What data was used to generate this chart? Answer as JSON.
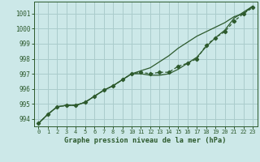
{
  "title": "Graphe pression niveau de la mer (hPa)",
  "bg_color": "#cce8e8",
  "grid_color": "#aacccc",
  "line_color": "#2d5a2d",
  "xlim": [
    -0.5,
    23.5
  ],
  "ylim": [
    993.5,
    1001.8
  ],
  "yticks": [
    994,
    995,
    996,
    997,
    998,
    999,
    1000,
    1001
  ],
  "xticks": [
    0,
    1,
    2,
    3,
    4,
    5,
    6,
    7,
    8,
    9,
    10,
    11,
    12,
    13,
    14,
    15,
    16,
    17,
    18,
    19,
    20,
    21,
    22,
    23
  ],
  "hours": [
    0,
    1,
    2,
    3,
    4,
    5,
    6,
    7,
    8,
    9,
    10,
    11,
    12,
    13,
    14,
    15,
    16,
    17,
    18,
    19,
    20,
    21,
    22,
    23
  ],
  "pressure_main": [
    993.7,
    994.3,
    994.8,
    994.9,
    994.9,
    995.1,
    995.5,
    995.9,
    996.2,
    996.6,
    997.0,
    997.1,
    997.0,
    997.1,
    997.1,
    997.5,
    997.7,
    998.0,
    998.9,
    999.4,
    999.8,
    1000.5,
    1001.0,
    1001.4
  ],
  "pressure_upper": [
    993.7,
    994.3,
    994.8,
    994.9,
    994.9,
    995.1,
    995.5,
    995.9,
    996.2,
    996.6,
    997.0,
    997.2,
    997.4,
    997.8,
    998.2,
    998.7,
    999.1,
    999.5,
    999.8,
    1000.1,
    1000.4,
    1000.8,
    1001.0,
    1001.5
  ],
  "pressure_lower": [
    993.7,
    994.3,
    994.8,
    994.9,
    994.9,
    995.1,
    995.5,
    995.9,
    996.2,
    996.6,
    997.0,
    997.0,
    996.9,
    996.9,
    997.0,
    997.3,
    997.7,
    998.1,
    998.8,
    999.4,
    999.9,
    1000.7,
    1001.1,
    1001.5
  ]
}
